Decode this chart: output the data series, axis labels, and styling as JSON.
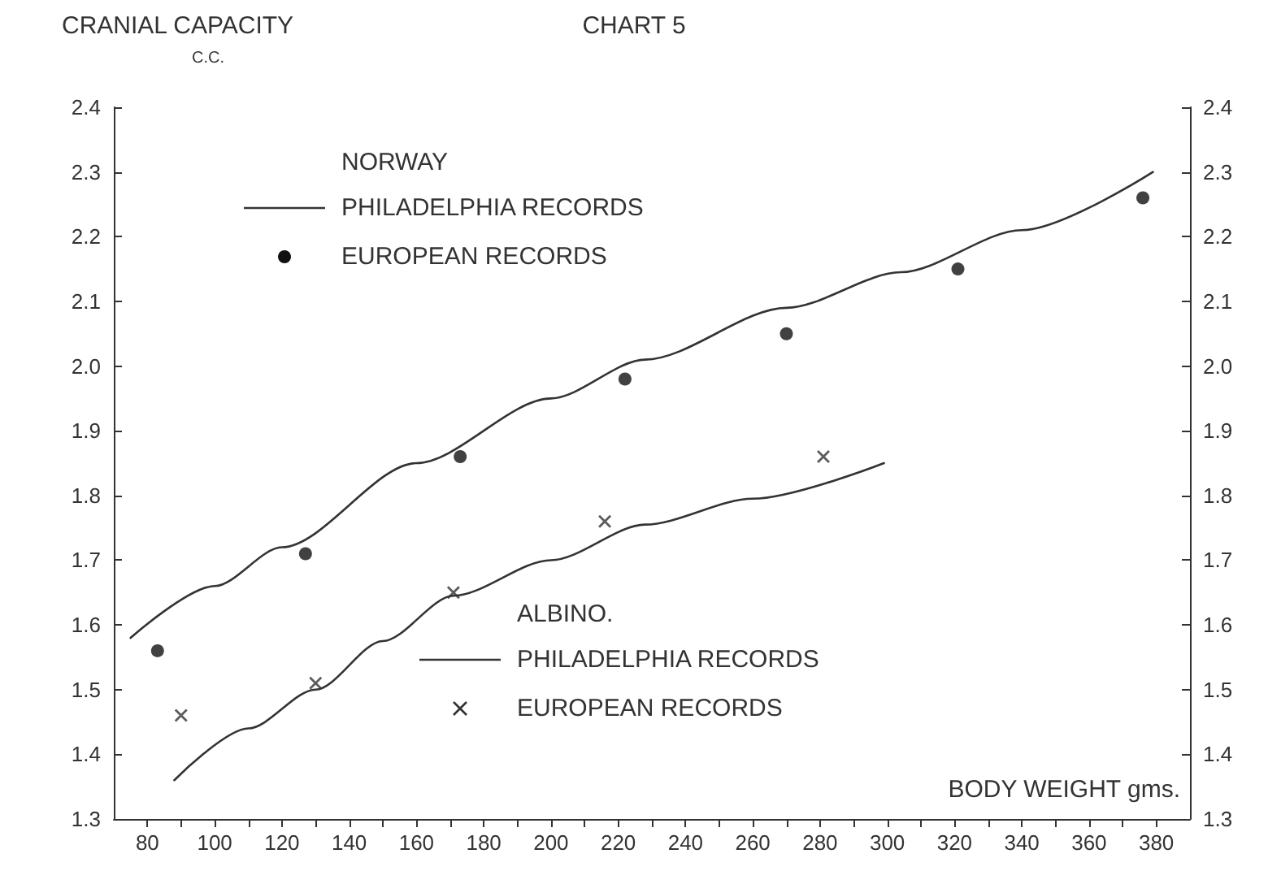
{
  "chart_data": {
    "type": "scatter",
    "title": "CHART 5",
    "ylabel": "CRANIAL CAPACITY",
    "xlabel": "BODY WEIGHT gms.",
    "annotations": [
      "C.C.",
      "NORWAY",
      "ALBINO."
    ],
    "series": [
      {
        "name": "PHILADELPHIA RECORDS",
        "type": "line",
        "color": "#333333",
        "marker": "none",
        "x": [
          75,
          100,
          120,
          160,
          200,
          228,
          270,
          304,
          340,
          379
        ],
        "values": [
          1.58,
          1.66,
          1.72,
          1.85,
          1.95,
          2.01,
          2.09,
          2.145,
          2.21,
          2.3
        ]
      },
      {
        "name": "EUROPEAN RECORDS",
        "color": "#111111",
        "marker": "circle",
        "x": [
          83,
          127,
          173,
          222,
          270,
          321,
          376
        ],
        "values": [
          1.56,
          1.71,
          1.86,
          1.98,
          2.05,
          2.15,
          2.26
        ]
      },
      {
        "name": "PHILADELPHIA RECORDS",
        "type": "line",
        "color": "#333333",
        "marker": "none",
        "x": [
          88,
          110,
          130,
          150,
          171,
          200,
          228,
          260,
          299
        ],
        "values": [
          1.36,
          1.44,
          1.5,
          1.575,
          1.645,
          1.7,
          1.755,
          1.795,
          1.85
        ]
      },
      {
        "name": "EUROPEAN RECORDS",
        "color": "#333333",
        "marker": "cross",
        "x": [
          90,
          130,
          171,
          216,
          281
        ],
        "values": [
          1.46,
          1.51,
          1.65,
          1.76,
          1.86
        ]
      }
    ],
    "xlim": [
      70,
      390
    ],
    "xticks": [
      80,
      {
        "value": 90,
        "label": null
      },
      100,
      {
        "value": 110,
        "label": null
      },
      120,
      {
        "value": 130,
        "label": null
      },
      140,
      {
        "value": 150,
        "label": null
      },
      160,
      {
        "value": 170,
        "label": null
      },
      180,
      {
        "value": 190,
        "label": null
      },
      200,
      {
        "value": 210,
        "label": null
      },
      220,
      {
        "value": 230,
        "label": null
      },
      240,
      {
        "value": 250,
        "label": null
      },
      260,
      {
        "value": 270,
        "label": null
      },
      280,
      {
        "value": 290,
        "label": null
      },
      300,
      {
        "value": 310,
        "label": null
      },
      320,
      {
        "value": 330,
        "label": null
      },
      340,
      {
        "value": 350,
        "label": null
      },
      360,
      {
        "value": 370,
        "label": null
      },
      380
    ],
    "ylim": [
      1.3,
      2.4
    ],
    "yticks": [
      1.3,
      1.4,
      1.5,
      1.6,
      1.7,
      1.8,
      1.9,
      {
        "value": 2,
        "label": "2.0"
      },
      2.1,
      2.2,
      2.3,
      2.4
    ],
    "y2lim": [
      1.3,
      2.4
    ],
    "y2ticks": [
      1.3,
      1.4,
      1.5,
      1.6,
      1.7,
      1.8,
      1.9,
      {
        "value": 2,
        "label": "2.0"
      },
      2.1,
      2.2,
      2.3,
      2.4
    ],
    "grid": false,
    "legend": "top"
  }
}
